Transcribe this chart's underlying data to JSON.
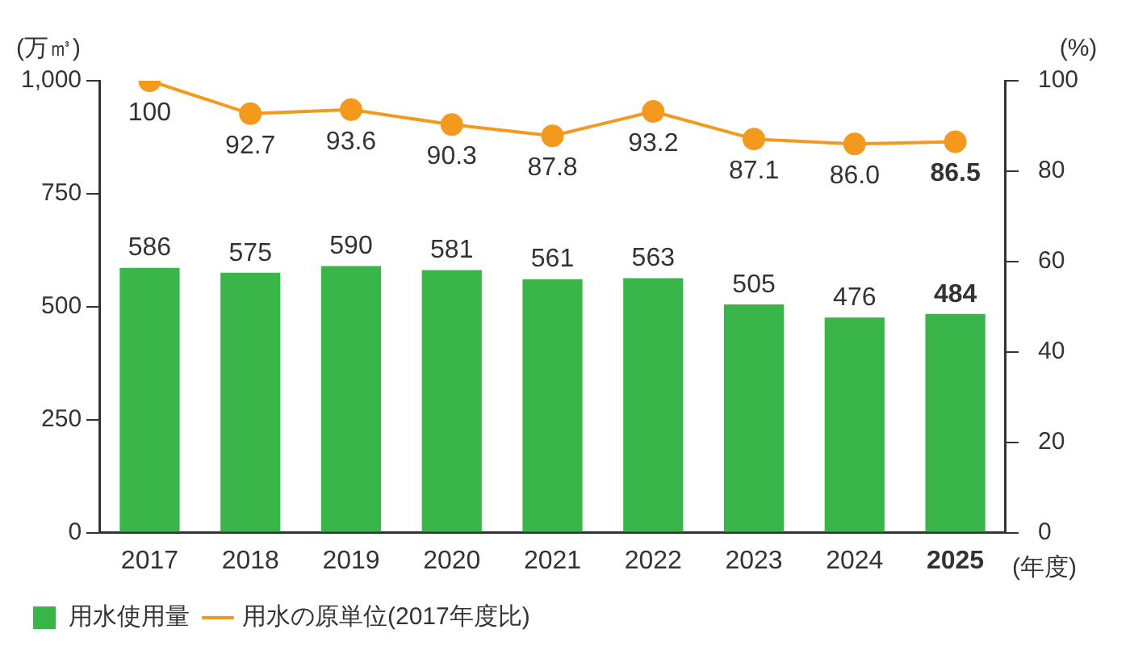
{
  "chart_data": {
    "type": "bar",
    "xlabel": "(年度)",
    "ylabel": "(万㎥)",
    "y2label": "(%)",
    "categories": [
      "2017",
      "2018",
      "2019",
      "2020",
      "2021",
      "2022",
      "2023",
      "2024",
      "2025"
    ],
    "series": [
      {
        "name": "用水使用量",
        "color": "#3ab54a",
        "values": [
          586,
          575,
          590,
          581,
          561,
          563,
          505,
          476,
          484
        ],
        "value_labels": [
          "586",
          "575",
          "590",
          "581",
          "561",
          "563",
          "505",
          "476",
          "484"
        ]
      },
      {
        "name": "用水の原単位(2017年度比)",
        "type": "line",
        "axis": "y2",
        "color": "#f39a1e",
        "marker": "circle",
        "values": [
          100,
          92.7,
          93.6,
          90.3,
          87.8,
          93.2,
          87.1,
          86.0,
          86.5
        ],
        "value_labels": [
          "100",
          "92.7",
          "93.6",
          "90.3",
          "87.8",
          "93.2",
          "87.1",
          "86.0",
          "86.5"
        ]
      }
    ],
    "ylim": [
      0,
      1000
    ],
    "yticks": [
      0,
      250,
      500,
      750,
      {
        "value": 1000,
        "label": "1,000"
      }
    ],
    "y2lim": [
      0,
      100
    ],
    "y2ticks": [
      0,
      20,
      40,
      60,
      80,
      100
    ],
    "grid": false,
    "legend": "bottom left"
  }
}
